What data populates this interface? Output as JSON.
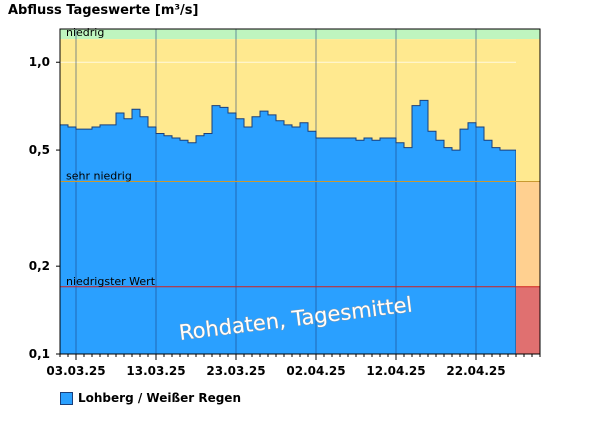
{
  "chart_data": {
    "type": "area",
    "title": "Abfluss Tageswerte [m³/s]",
    "yscale": "log",
    "ylim": [
      0.1,
      1.3
    ],
    "y_ticks": [
      {
        "label": "1,0",
        "value": 1.0
      },
      {
        "label": "0,5",
        "value": 0.5
      },
      {
        "label": "0,2",
        "value": 0.2
      },
      {
        "label": "0,1",
        "value": 0.1
      }
    ],
    "x_ticks": [
      {
        "label": "03.03.25",
        "day": 2
      },
      {
        "label": "13.03.25",
        "day": 12
      },
      {
        "label": "23.03.25",
        "day": 22
      },
      {
        "label": "02.04.25",
        "day": 32
      },
      {
        "label": "12.04.25",
        "day": 42
      },
      {
        "label": "22.04.25",
        "day": 52
      }
    ],
    "days_total": 60,
    "series": [
      {
        "name": "Lohberg / Weißer Regen",
        "color": "#2aa0ff",
        "values": [
          0.61,
          0.6,
          0.59,
          0.59,
          0.6,
          0.61,
          0.61,
          0.67,
          0.64,
          0.69,
          0.65,
          0.6,
          0.57,
          0.56,
          0.55,
          0.54,
          0.53,
          0.56,
          0.57,
          0.71,
          0.7,
          0.67,
          0.64,
          0.6,
          0.65,
          0.68,
          0.66,
          0.63,
          0.61,
          0.6,
          0.62,
          0.58,
          0.55,
          0.55,
          0.55,
          0.55,
          0.55,
          0.54,
          0.55,
          0.54,
          0.55,
          0.55,
          0.53,
          0.51,
          0.71,
          0.74,
          0.58,
          0.54,
          0.51,
          0.5,
          0.59,
          0.62,
          0.6,
          0.54,
          0.51,
          0.5,
          0.5
        ]
      }
    ],
    "thresholds": [
      {
        "label": "niedrig",
        "value": 1.2,
        "band_color": "#ffe98f",
        "line_color": "#c8b060",
        "end_color": "#ffe98f"
      },
      {
        "label": "sehr niedrig",
        "value": 0.39,
        "band_color": "#ffd090",
        "line_color": "#c89a30",
        "end_color": "#ffd090"
      },
      {
        "label": "niedrigster Wert",
        "value": 0.17,
        "band_color": "#f08080",
        "line_color": "#d02020",
        "end_color": "#e07070"
      }
    ],
    "top_band_color": "#bff5bf",
    "watermark": "Rohdaten, Tagesmittel",
    "legend_position": "bottom-left",
    "grid": true
  },
  "legend": {
    "label": "Lohberg / Weißer Regen"
  }
}
